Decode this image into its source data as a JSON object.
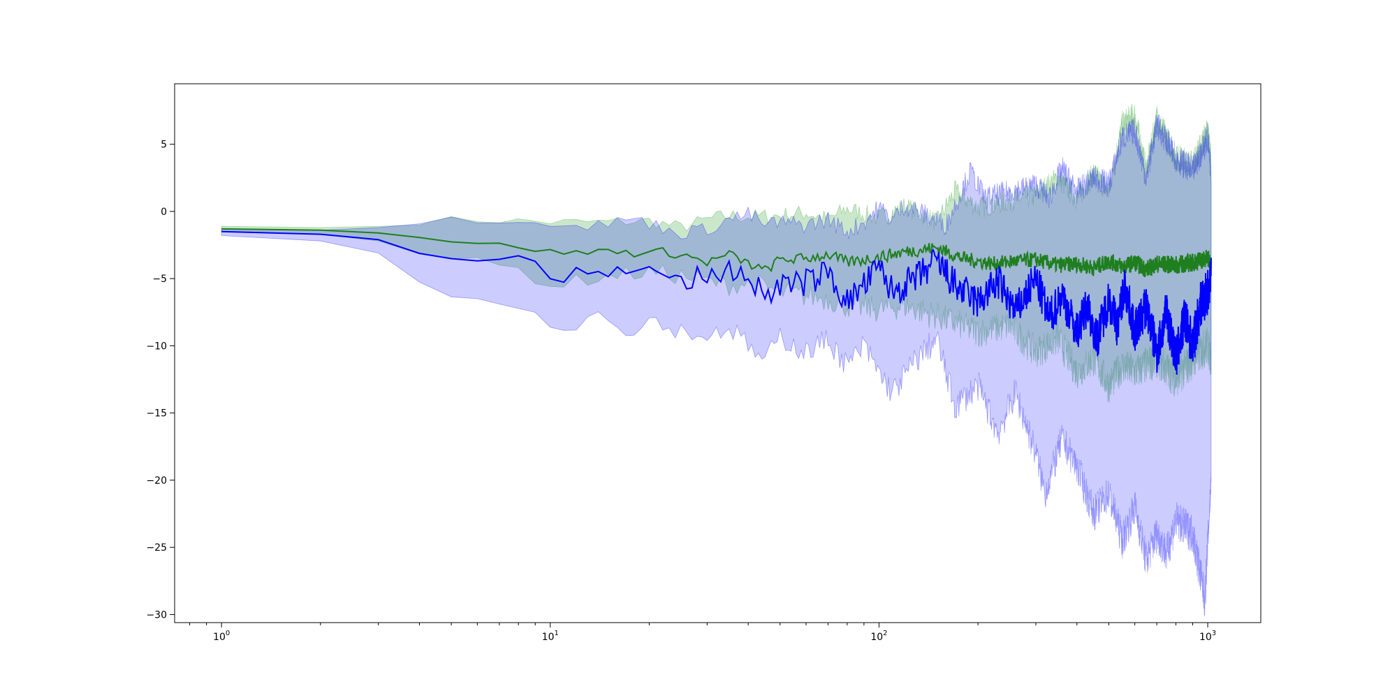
{
  "chart_data": {
    "type": "area",
    "title": "",
    "xlabel": "",
    "ylabel": "",
    "x_scale": "log",
    "xlim": [
      0.72,
      1450
    ],
    "ylim": [
      -30.6,
      9.5
    ],
    "x_ticks": [
      {
        "value": 1,
        "label": "10",
        "exp": "0"
      },
      {
        "value": 10,
        "label": "10",
        "exp": "1"
      },
      {
        "value": 100,
        "label": "10",
        "exp": "2"
      },
      {
        "value": 1000,
        "label": "10",
        "exp": "3"
      }
    ],
    "y_ticks": [
      5,
      0,
      -5,
      -10,
      -15,
      -20,
      -25,
      -30
    ],
    "y_tick_labels": [
      "5",
      "0",
      "−5",
      "−10",
      "−15",
      "−20",
      "−25",
      "−30"
    ],
    "grid": false,
    "legend": "none",
    "series": [
      {
        "color": "#1f7f1f",
        "fill_color": "#2ca02c",
        "fill_opacity": 0.25,
        "points": [
          [
            1,
            -1.3
          ],
          [
            2,
            -1.4
          ],
          [
            3,
            -1.6
          ],
          [
            4,
            -1.9
          ],
          [
            5,
            -2.2
          ],
          [
            6,
            -2.4
          ],
          [
            8,
            -2.6
          ],
          [
            10,
            -3.0
          ],
          [
            12,
            -3.1
          ],
          [
            15,
            -2.9
          ],
          [
            18,
            -3.1
          ],
          [
            22,
            -3.0
          ],
          [
            26,
            -3.3
          ],
          [
            30,
            -3.8
          ],
          [
            35,
            -3.2
          ],
          [
            40,
            -3.9
          ],
          [
            45,
            -4.4
          ],
          [
            50,
            -3.6
          ],
          [
            60,
            -3.5
          ],
          [
            70,
            -3.2
          ],
          [
            80,
            -3.8
          ],
          [
            100,
            -3.4
          ],
          [
            120,
            -3.0
          ],
          [
            150,
            -2.7
          ],
          [
            180,
            -3.5
          ],
          [
            220,
            -3.9
          ],
          [
            260,
            -3.7
          ],
          [
            300,
            -3.6
          ],
          [
            350,
            -4.0
          ],
          [
            400,
            -3.9
          ],
          [
            450,
            -4.2
          ],
          [
            500,
            -3.7
          ],
          [
            550,
            -4.1
          ],
          [
            600,
            -3.8
          ],
          [
            650,
            -4.3
          ],
          [
            700,
            -3.9
          ],
          [
            800,
            -4.0
          ],
          [
            900,
            -3.8
          ],
          [
            1000,
            -3.5
          ],
          [
            1024,
            -4.0
          ]
        ],
        "upper": [
          [
            1,
            -1.1
          ],
          [
            2,
            -1.2
          ],
          [
            3,
            -1.1
          ],
          [
            4,
            -0.8
          ],
          [
            5,
            -0.6
          ],
          [
            8,
            -0.7
          ],
          [
            10,
            -0.8
          ],
          [
            15,
            -0.8
          ],
          [
            20,
            -0.7
          ],
          [
            25,
            -1.2
          ],
          [
            30,
            -0.6
          ],
          [
            35,
            -0.3
          ],
          [
            40,
            -0.4
          ],
          [
            50,
            -0.3
          ],
          [
            60,
            -0.1
          ],
          [
            70,
            -0.6
          ],
          [
            80,
            0.2
          ],
          [
            100,
            -0.5
          ],
          [
            120,
            0.4
          ],
          [
            150,
            -0.8
          ],
          [
            170,
            1.5
          ],
          [
            200,
            0.3
          ],
          [
            250,
            0.8
          ],
          [
            300,
            1.2
          ],
          [
            350,
            2.5
          ],
          [
            400,
            1.0
          ],
          [
            450,
            2.8
          ],
          [
            500,
            1.5
          ],
          [
            550,
            6.5
          ],
          [
            600,
            7.2
          ],
          [
            650,
            3.0
          ],
          [
            700,
            7.0
          ],
          [
            800,
            4.0
          ],
          [
            900,
            3.5
          ],
          [
            1000,
            6.0
          ],
          [
            1024,
            4.0
          ]
        ],
        "lower": [
          [
            1,
            -1.5
          ],
          [
            2,
            -1.7
          ],
          [
            3,
            -2.2
          ],
          [
            4,
            -3.0
          ],
          [
            5,
            -3.5
          ],
          [
            8,
            -4.3
          ],
          [
            10,
            -5.5
          ],
          [
            15,
            -4.8
          ],
          [
            20,
            -4.5
          ],
          [
            25,
            -4.8
          ],
          [
            30,
            -5.2
          ],
          [
            35,
            -5.5
          ],
          [
            40,
            -5.3
          ],
          [
            50,
            -6.0
          ],
          [
            60,
            -6.3
          ],
          [
            70,
            -6.5
          ],
          [
            80,
            -7.0
          ],
          [
            100,
            -7.3
          ],
          [
            120,
            -7.0
          ],
          [
            150,
            -7.8
          ],
          [
            200,
            -9.0
          ],
          [
            250,
            -8.5
          ],
          [
            300,
            -10.5
          ],
          [
            350,
            -9.5
          ],
          [
            400,
            -12.0
          ],
          [
            450,
            -11.0
          ],
          [
            500,
            -13.0
          ],
          [
            550,
            -11.5
          ],
          [
            600,
            -12.0
          ],
          [
            700,
            -11.0
          ],
          [
            800,
            -12.5
          ],
          [
            900,
            -11.0
          ],
          [
            1000,
            -10.0
          ],
          [
            1024,
            -11.0
          ]
        ]
      },
      {
        "color": "#0000ff",
        "fill_color": "#0000ff",
        "fill_opacity": 0.2,
        "points": [
          [
            1,
            -1.5
          ],
          [
            2,
            -1.7
          ],
          [
            3,
            -2.1
          ],
          [
            4,
            -2.8
          ],
          [
            5,
            -3.3
          ],
          [
            6,
            -3.5
          ],
          [
            8,
            -3.7
          ],
          [
            9,
            -4.0
          ],
          [
            10,
            -4.9
          ],
          [
            11,
            -5.0
          ],
          [
            12,
            -4.7
          ],
          [
            14,
            -4.0
          ],
          [
            16,
            -4.7
          ],
          [
            18,
            -4.5
          ],
          [
            20,
            -4.5
          ],
          [
            22,
            -4.4
          ],
          [
            25,
            -5.4
          ],
          [
            28,
            -4.9
          ],
          [
            30,
            -5.2
          ],
          [
            35,
            -4.2
          ],
          [
            40,
            -5.0
          ],
          [
            45,
            -6.2
          ],
          [
            50,
            -5.5
          ],
          [
            60,
            -5.3
          ],
          [
            70,
            -4.5
          ],
          [
            80,
            -6.8
          ],
          [
            90,
            -5.5
          ],
          [
            100,
            -4.2
          ],
          [
            110,
            -6.0
          ],
          [
            130,
            -5.0
          ],
          [
            150,
            -3.7
          ],
          [
            170,
            -5.5
          ],
          [
            200,
            -6.8
          ],
          [
            230,
            -5.2
          ],
          [
            260,
            -7.5
          ],
          [
            300,
            -5.0
          ],
          [
            330,
            -8.0
          ],
          [
            360,
            -6.2
          ],
          [
            400,
            -9.0
          ],
          [
            430,
            -7.0
          ],
          [
            460,
            -9.5
          ],
          [
            500,
            -6.5
          ],
          [
            530,
            -8.5
          ],
          [
            560,
            -5.5
          ],
          [
            600,
            -9.0
          ],
          [
            650,
            -7.0
          ],
          [
            700,
            -10.5
          ],
          [
            750,
            -7.5
          ],
          [
            800,
            -11.0
          ],
          [
            850,
            -8.0
          ],
          [
            900,
            -10.0
          ],
          [
            950,
            -7.0
          ],
          [
            1000,
            -6.0
          ],
          [
            1024,
            -5.0
          ]
        ],
        "upper": [
          [
            1,
            -1.3
          ],
          [
            2,
            -1.4
          ],
          [
            3,
            -1.2
          ],
          [
            4,
            -0.7
          ],
          [
            5,
            -0.5
          ],
          [
            6,
            -0.6
          ],
          [
            8,
            -0.6
          ],
          [
            10,
            -0.8
          ],
          [
            12,
            -1.2
          ],
          [
            15,
            -0.9
          ],
          [
            18,
            -0.5
          ],
          [
            20,
            -0.9
          ],
          [
            25,
            -1.6
          ],
          [
            30,
            -1.3
          ],
          [
            35,
            -0.6
          ],
          [
            40,
            -0.2
          ],
          [
            45,
            -1.0
          ],
          [
            50,
            -0.8
          ],
          [
            60,
            -1.0
          ],
          [
            70,
            -0.6
          ],
          [
            80,
            -1.5
          ],
          [
            90,
            -0.8
          ],
          [
            100,
            0.3
          ],
          [
            110,
            -0.6
          ],
          [
            120,
            0.5
          ],
          [
            140,
            -0.3
          ],
          [
            160,
            -1.0
          ],
          [
            190,
            3.0
          ],
          [
            210,
            1.0
          ],
          [
            250,
            1.5
          ],
          [
            300,
            2.0
          ],
          [
            330,
            1.0
          ],
          [
            360,
            3.2
          ],
          [
            400,
            1.5
          ],
          [
            450,
            2.5
          ],
          [
            500,
            2.0
          ],
          [
            550,
            5.5
          ],
          [
            600,
            6.0
          ],
          [
            650,
            2.5
          ],
          [
            700,
            6.5
          ],
          [
            800,
            4.0
          ],
          [
            900,
            3.0
          ],
          [
            1000,
            5.5
          ],
          [
            1024,
            3.0
          ]
        ],
        "lower": [
          [
            1,
            -1.8
          ],
          [
            2,
            -2.2
          ],
          [
            3,
            -3.1
          ],
          [
            4,
            -5.0
          ],
          [
            5,
            -6.1
          ],
          [
            6,
            -6.5
          ],
          [
            8,
            -6.8
          ],
          [
            9,
            -7.5
          ],
          [
            10,
            -8.6
          ],
          [
            11,
            -8.9
          ],
          [
            12,
            -8.3
          ],
          [
            14,
            -7.5
          ],
          [
            16,
            -8.7
          ],
          [
            18,
            -8.7
          ],
          [
            20,
            -8.0
          ],
          [
            25,
            -8.9
          ],
          [
            30,
            -9.3
          ],
          [
            35,
            -8.6
          ],
          [
            40,
            -10.0
          ],
          [
            45,
            -11.2
          ],
          [
            50,
            -9.3
          ],
          [
            60,
            -10.5
          ],
          [
            70,
            -9.5
          ],
          [
            80,
            -11.5
          ],
          [
            90,
            -10.0
          ],
          [
            100,
            -12.0
          ],
          [
            110,
            -13.5
          ],
          [
            130,
            -11.0
          ],
          [
            150,
            -9.5
          ],
          [
            170,
            -14.5
          ],
          [
            200,
            -13.0
          ],
          [
            230,
            -16.5
          ],
          [
            260,
            -13.5
          ],
          [
            300,
            -18.0
          ],
          [
            320,
            -21.0
          ],
          [
            360,
            -17.0
          ],
          [
            400,
            -19.0
          ],
          [
            450,
            -22.5
          ],
          [
            500,
            -21.0
          ],
          [
            550,
            -24.5
          ],
          [
            600,
            -22.0
          ],
          [
            650,
            -26.0
          ],
          [
            700,
            -24.0
          ],
          [
            750,
            -25.5
          ],
          [
            800,
            -23.0
          ],
          [
            900,
            -24.0
          ],
          [
            980,
            -28.9
          ],
          [
            1024,
            -20.0
          ]
        ]
      }
    ]
  }
}
